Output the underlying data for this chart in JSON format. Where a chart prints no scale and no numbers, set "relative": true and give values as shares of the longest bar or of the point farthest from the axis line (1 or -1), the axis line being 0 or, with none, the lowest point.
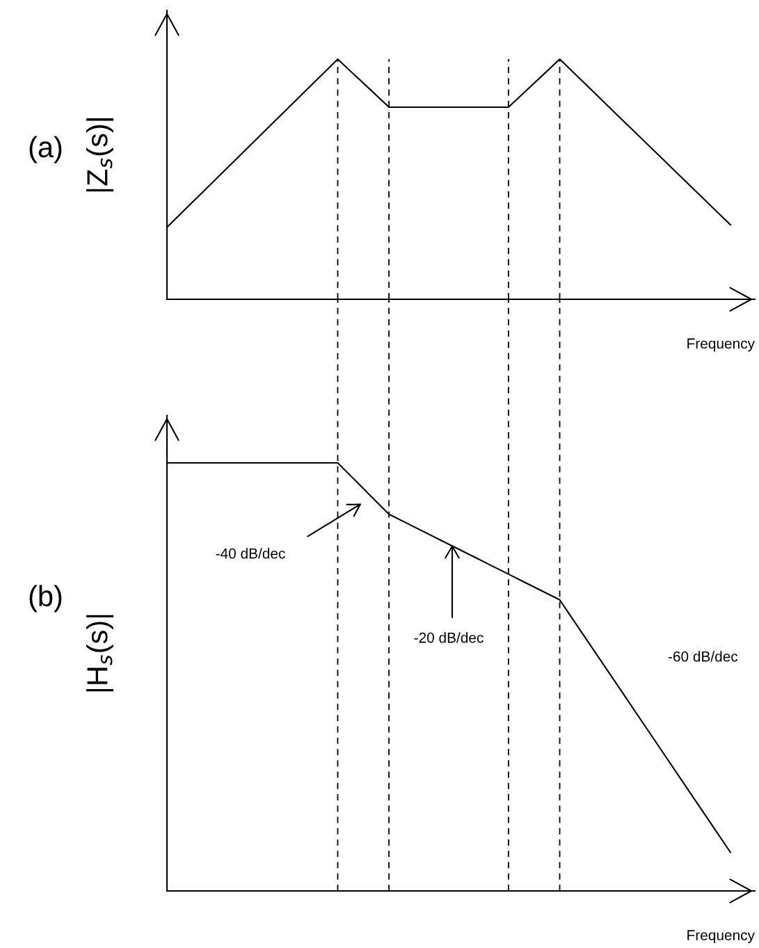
{
  "chart_data": [
    {
      "type": "line",
      "title": "(a)",
      "ylabel": "|Z$_{s}$(s)|",
      "xlabel": "Frequency",
      "relative": true,
      "tick_labels": false,
      "marker": "none",
      "line_style": "solid",
      "categories": [
        null,
        null,
        null,
        null,
        null,
        null,
        null,
        null,
        null,
        null,
        null,
        null,
        null,
        null,
        null,
        null,
        null,
        null,
        null,
        null,
        null,
        null,
        null,
        null,
        null,
        null,
        null,
        null,
        null,
        null,
        null,
        null,
        null,
        null
      ],
      "grid": "x",
      "legend": false,
      "series": [
        {
          "color": "#000000",
          "values": [
            0.3,
            0.37,
            0.44,
            0.51,
            0.58,
            0.65,
            0.72,
            0.79,
            0.86,
            0.93,
            1.0,
            0.933,
            0.867,
            0.8,
            0.8,
            0.8,
            0.8,
            0.8,
            0.8,
            0.8,
            0.8,
            0.867,
            0.933,
            1.0,
            0.931,
            0.862,
            0.793,
            0.724,
            0.655,
            0.586,
            0.517,
            0.448,
            0.379,
            0.31
          ]
        }
      ]
    },
    {
      "type": "line",
      "title": "(b)",
      "ylabel": "|H$_{s}$(s)|",
      "xlabel": "Frequency",
      "relative": true,
      "tick_labels": false,
      "marker": "none",
      "line_style": "solid",
      "categories": [
        null,
        null,
        null,
        null,
        null,
        null,
        null,
        null,
        null,
        null,
        null,
        null,
        null,
        null,
        null,
        null,
        null,
        null,
        null,
        null,
        null,
        null,
        null,
        null,
        null,
        null,
        null,
        null,
        null,
        null,
        null,
        null,
        null,
        null
      ],
      "grid": "x",
      "legend": false,
      "series": [
        {
          "color": "#000000",
          "values": [
            1,
            1,
            1,
            1,
            1,
            1,
            1,
            1,
            1,
            1,
            1,
            0.96,
            0.92,
            0.88,
            0.86,
            0.84,
            0.82,
            0.8,
            0.78,
            0.76,
            0.74,
            0.72,
            0.7,
            0.68,
            0.621,
            0.562,
            0.503,
            0.444,
            0.385,
            0.326,
            0.267,
            0.208,
            0.149,
            0.09
          ]
        }
      ],
      "annotations": [
        "-40 dB/dec",
        "-20 dB/dec",
        "-60 dB/dec"
      ]
    }
  ]
}
